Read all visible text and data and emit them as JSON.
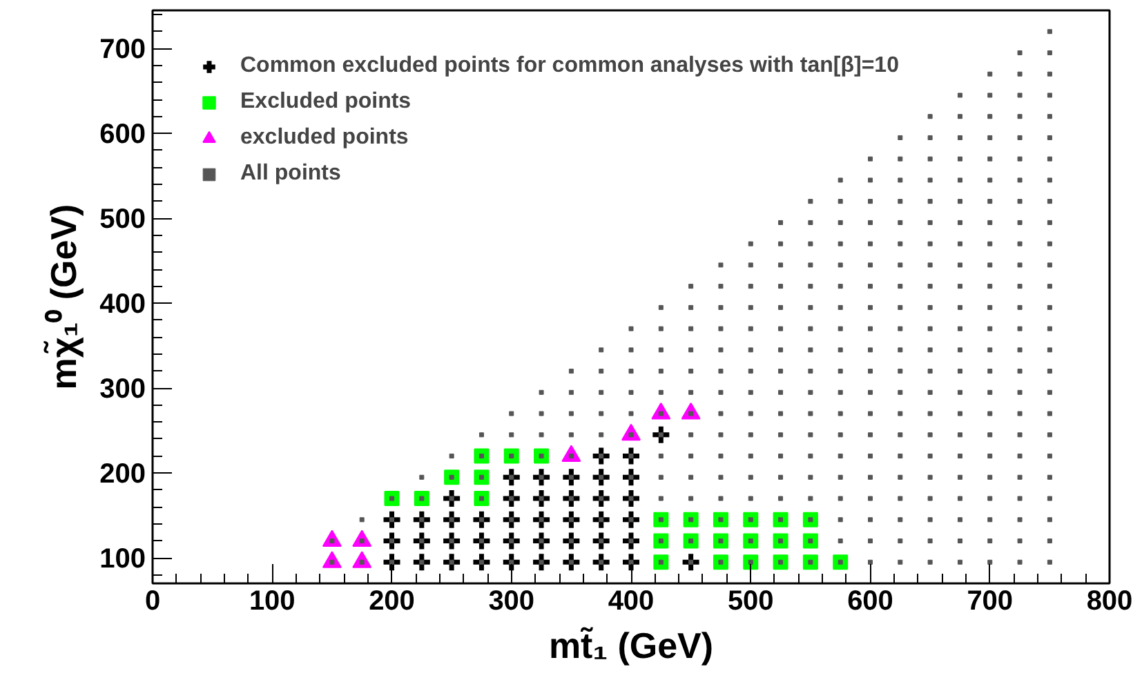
{
  "chart_data": {
    "type": "scatter",
    "xlabel": "mt̃₁ (GeV)",
    "ylabel": "mχ̃₁⁰ (GeV)",
    "xlim": [
      0,
      800
    ],
    "ylim": [
      70,
      745
    ],
    "xticks": [
      0,
      100,
      200,
      300,
      400,
      500,
      600,
      700,
      800
    ],
    "yticks": [
      100,
      200,
      300,
      400,
      500,
      600,
      700
    ],
    "legend": "top left",
    "series": [
      {
        "name": "Common excluded points for common analyses with tan[β]=10",
        "color": "#000000",
        "marker": "cross",
        "x": [
          200,
          200,
          200,
          225,
          225,
          225,
          250,
          250,
          250,
          250,
          275,
          275,
          275,
          300,
          300,
          300,
          300,
          300,
          325,
          325,
          325,
          325,
          325,
          350,
          350,
          350,
          350,
          350,
          375,
          375,
          375,
          375,
          375,
          375,
          400,
          400,
          400,
          400,
          400,
          400,
          425,
          450
        ],
        "values": [
          95,
          120,
          145,
          95,
          120,
          145,
          95,
          120,
          145,
          170,
          95,
          120,
          145,
          95,
          120,
          145,
          170,
          195,
          95,
          120,
          145,
          170,
          195,
          95,
          120,
          145,
          170,
          195,
          95,
          120,
          145,
          170,
          195,
          220,
          95,
          120,
          145,
          170,
          195,
          220,
          245,
          95
        ]
      },
      {
        "name": "Excluded points",
        "color": "#00ff00",
        "marker": "square",
        "x": [
          200,
          225,
          250,
          275,
          275,
          275,
          300,
          325,
          425,
          425,
          425,
          450,
          450,
          475,
          475,
          475,
          500,
          500,
          500,
          525,
          525,
          525,
          550,
          550,
          550,
          575
        ],
        "values": [
          170,
          170,
          195,
          170,
          195,
          220,
          220,
          220,
          95,
          120,
          145,
          120,
          145,
          95,
          120,
          145,
          95,
          120,
          145,
          95,
          120,
          145,
          95,
          120,
          145,
          95
        ]
      },
      {
        "name": "excluded points",
        "color": "#ff00ff",
        "marker": "triangle",
        "x": [
          150,
          150,
          175,
          175,
          350,
          400,
          425,
          450
        ],
        "values": [
          95,
          120,
          95,
          120,
          220,
          245,
          270,
          270
        ]
      },
      {
        "name": "All points",
        "color": "#555555",
        "marker": "square",
        "x": [
          150,
          150,
          175,
          175,
          175,
          200,
          200,
          200,
          200,
          225,
          225,
          225,
          225,
          225,
          250,
          250,
          250,
          250,
          250,
          250,
          275,
          275,
          275,
          275,
          275,
          275,
          275,
          300,
          300,
          300,
          300,
          300,
          300,
          300,
          300,
          325,
          325,
          325,
          325,
          325,
          325,
          325,
          325,
          325,
          350,
          350,
          350,
          350,
          350,
          350,
          350,
          350,
          350,
          350,
          375,
          375,
          375,
          375,
          375,
          375,
          375,
          375,
          375,
          375,
          375,
          400,
          400,
          400,
          400,
          400,
          400,
          400,
          400,
          400,
          400,
          400,
          400,
          425,
          425,
          425,
          425,
          425,
          425,
          425,
          425,
          425,
          425,
          425,
          425,
          425,
          450,
          450,
          450,
          450,
          450,
          450,
          450,
          450,
          450,
          450,
          450,
          450,
          450,
          450,
          475,
          475,
          475,
          475,
          475,
          475,
          475,
          475,
          475,
          475,
          475,
          475,
          475,
          475,
          475,
          500,
          500,
          500,
          500,
          500,
          500,
          500,
          500,
          500,
          500,
          500,
          500,
          500,
          500,
          500,
          500,
          525,
          525,
          525,
          525,
          525,
          525,
          525,
          525,
          525,
          525,
          525,
          525,
          525,
          525,
          525,
          525,
          525,
          550,
          550,
          550,
          550,
          550,
          550,
          550,
          550,
          550,
          550,
          550,
          550,
          550,
          550,
          550,
          550,
          550,
          550,
          575,
          575,
          575,
          575,
          575,
          575,
          575,
          575,
          575,
          575,
          575,
          575,
          575,
          575,
          575,
          575,
          575,
          575,
          575,
          600,
          600,
          600,
          600,
          600,
          600,
          600,
          600,
          600,
          600,
          600,
          600,
          600,
          600,
          600,
          600,
          600,
          600,
          600,
          600,
          625,
          625,
          625,
          625,
          625,
          625,
          625,
          625,
          625,
          625,
          625,
          625,
          625,
          625,
          625,
          625,
          625,
          625,
          625,
          625,
          625,
          650,
          650,
          650,
          650,
          650,
          650,
          650,
          650,
          650,
          650,
          650,
          650,
          650,
          650,
          650,
          650,
          650,
          650,
          650,
          650,
          650,
          650,
          675,
          675,
          675,
          675,
          675,
          675,
          675,
          675,
          675,
          675,
          675,
          675,
          675,
          675,
          675,
          675,
          675,
          675,
          675,
          675,
          675,
          675,
          675,
          700,
          700,
          700,
          700,
          700,
          700,
          700,
          700,
          700,
          700,
          700,
          700,
          700,
          700,
          700,
          700,
          700,
          700,
          700,
          700,
          700,
          700,
          700,
          700,
          725,
          725,
          725,
          725,
          725,
          725,
          725,
          725,
          725,
          725,
          725,
          725,
          725,
          725,
          725,
          725,
          725,
          725,
          725,
          725,
          725,
          725,
          725,
          725,
          725,
          750,
          750,
          750,
          750,
          750,
          750,
          750,
          750,
          750,
          750,
          750,
          750,
          750,
          750,
          750,
          750,
          750,
          750,
          750,
          750,
          750,
          750,
          750,
          750,
          750,
          750
        ],
        "values": [
          95,
          120,
          95,
          120,
          145,
          95,
          120,
          145,
          170,
          95,
          120,
          145,
          170,
          195,
          95,
          120,
          145,
          170,
          195,
          220,
          95,
          120,
          145,
          170,
          195,
          220,
          245,
          95,
          120,
          145,
          170,
          195,
          220,
          245,
          270,
          95,
          120,
          145,
          170,
          195,
          220,
          245,
          270,
          295,
          95,
          120,
          145,
          170,
          195,
          220,
          245,
          270,
          295,
          320,
          95,
          120,
          145,
          170,
          195,
          220,
          245,
          270,
          295,
          320,
          345,
          95,
          120,
          145,
          170,
          195,
          220,
          245,
          270,
          295,
          320,
          345,
          370,
          95,
          120,
          145,
          170,
          195,
          220,
          245,
          270,
          295,
          320,
          345,
          370,
          395,
          95,
          120,
          145,
          170,
          195,
          220,
          245,
          270,
          295,
          320,
          345,
          370,
          395,
          420,
          95,
          120,
          145,
          170,
          195,
          220,
          245,
          270,
          295,
          320,
          345,
          370,
          395,
          420,
          445,
          95,
          120,
          145,
          170,
          195,
          220,
          245,
          270,
          295,
          320,
          345,
          370,
          395,
          420,
          445,
          470,
          95,
          120,
          145,
          170,
          195,
          220,
          245,
          270,
          295,
          320,
          345,
          370,
          395,
          420,
          445,
          470,
          495,
          95,
          120,
          145,
          170,
          195,
          220,
          245,
          270,
          295,
          320,
          345,
          370,
          395,
          420,
          445,
          470,
          495,
          520,
          95,
          120,
          145,
          170,
          195,
          220,
          245,
          270,
          295,
          320,
          345,
          370,
          395,
          420,
          445,
          470,
          495,
          520,
          545,
          95,
          120,
          145,
          170,
          195,
          220,
          245,
          270,
          295,
          320,
          345,
          370,
          395,
          420,
          445,
          470,
          495,
          520,
          545,
          570,
          95,
          120,
          145,
          170,
          195,
          220,
          245,
          270,
          295,
          320,
          345,
          370,
          395,
          420,
          445,
          470,
          495,
          520,
          545,
          570,
          595,
          95,
          120,
          145,
          170,
          195,
          220,
          245,
          270,
          295,
          320,
          345,
          370,
          395,
          420,
          445,
          470,
          495,
          520,
          545,
          570,
          595,
          620,
          95,
          120,
          145,
          170,
          195,
          220,
          245,
          270,
          295,
          320,
          345,
          370,
          395,
          420,
          445,
          470,
          495,
          520,
          545,
          570,
          595,
          620,
          645,
          95,
          120,
          145,
          170,
          195,
          220,
          245,
          270,
          295,
          320,
          345,
          370,
          395,
          420,
          445,
          470,
          495,
          520,
          545,
          570,
          595,
          620,
          645,
          670,
          95,
          120,
          145,
          170,
          195,
          220,
          245,
          270,
          295,
          320,
          345,
          370,
          395,
          420,
          445,
          470,
          495,
          520,
          545,
          570,
          595,
          620,
          645,
          670,
          695,
          95,
          120,
          145,
          170,
          195,
          220,
          245,
          270,
          295,
          320,
          345,
          370,
          395,
          420,
          445,
          470,
          495,
          520,
          545,
          570,
          595,
          620,
          645,
          670,
          695,
          720
        ]
      }
    ]
  }
}
